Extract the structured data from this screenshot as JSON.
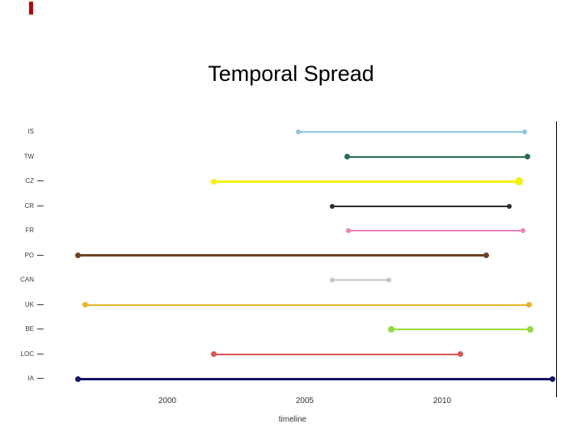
{
  "slide": {
    "title": "Temporal Spread",
    "marker_color": "#c00000"
  },
  "chart_data": {
    "type": "line",
    "subtype": "dumbbell-timeline",
    "title": "Temporal Spread",
    "xlabel": "timeline",
    "x_ticks": [
      2000,
      2005,
      2010
    ],
    "xlim": [
      1995.6,
      2014.2
    ],
    "grid": false,
    "legend": "none",
    "categories": [
      "IS",
      "TW",
      "CZ",
      "CR",
      "FR",
      "PO",
      "CAN",
      "UK",
      "BE",
      "LOC",
      "IA"
    ],
    "series": [
      {
        "name": "IS",
        "start": 2004.75,
        "end": 2013.0,
        "color": "#8EC4E8",
        "thickness": 2,
        "dot": 6,
        "tick": false
      },
      {
        "name": "TW",
        "start": 2006.55,
        "end": 2013.1,
        "color": "#276D4C",
        "thickness": 2,
        "dot": 7,
        "tick": false
      },
      {
        "name": "CZ",
        "start": 2001.7,
        "end": 2012.8,
        "color": "#F2F205",
        "thickness": 3,
        "dot": 7,
        "end_dot": 10,
        "tick": true
      },
      {
        "name": "CR",
        "start": 2006.0,
        "end": 2012.45,
        "color": "#2E2E2E",
        "thickness": 2,
        "dot": 6,
        "tick": true
      },
      {
        "name": "FR",
        "start": 2006.6,
        "end": 2012.95,
        "color": "#EF82B3",
        "thickness": 2,
        "dot": 6,
        "tick": false
      },
      {
        "name": "PO",
        "start": 1996.75,
        "end": 2011.6,
        "color": "#6E4224",
        "thickness": 3,
        "dot": 7,
        "tick": true
      },
      {
        "name": "CAN",
        "start": 2006.0,
        "end": 2008.05,
        "color": "#C7C7C7",
        "thickness": 2,
        "dot": 6,
        "tick": false
      },
      {
        "name": "UK",
        "start": 1997.0,
        "end": 2013.15,
        "color": "#E7B52C",
        "thickness": 2,
        "dot": 7,
        "tick": true
      },
      {
        "name": "BE",
        "start": 2008.15,
        "end": 2013.2,
        "color": "#94DB3B",
        "thickness": 2,
        "dot": 8,
        "tick": true
      },
      {
        "name": "LOC",
        "start": 2001.7,
        "end": 2010.65,
        "color": "#DC5353",
        "thickness": 2,
        "dot": 7,
        "tick": true
      },
      {
        "name": "IA",
        "start": 1996.75,
        "end": 2014.0,
        "color": "#131369",
        "thickness": 3,
        "dot": 7,
        "tick": true
      }
    ]
  }
}
